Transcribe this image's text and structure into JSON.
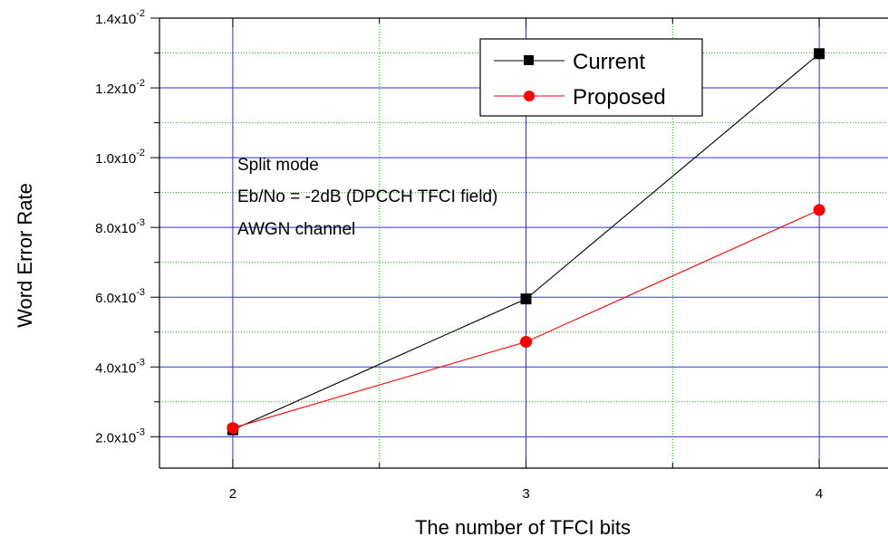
{
  "chart_data": {
    "type": "line",
    "title": "",
    "xlabel": "The number of TFCI bits",
    "ylabel": "Word Error Rate",
    "x": [
      2,
      3,
      4
    ],
    "xlim": [
      1.75,
      4.25
    ],
    "ylim": [
      0.0011,
      0.014
    ],
    "x_ticks": [
      {
        "value": 2,
        "label": "2"
      },
      {
        "value": 3,
        "label": "3"
      },
      {
        "value": 4,
        "label": "4"
      }
    ],
    "y_ticks": [
      {
        "value": 0.002,
        "mantissa": "2.0x10",
        "exponent": "-3"
      },
      {
        "value": 0.004,
        "mantissa": "4.0x10",
        "exponent": "-3"
      },
      {
        "value": 0.006,
        "mantissa": "6.0x10",
        "exponent": "-3"
      },
      {
        "value": 0.008,
        "mantissa": "8.0x10",
        "exponent": "-3"
      },
      {
        "value": 0.01,
        "mantissa": "1.0x10",
        "exponent": "-2"
      },
      {
        "value": 0.012,
        "mantissa": "1.2x10",
        "exponent": "-2"
      },
      {
        "value": 0.014,
        "mantissa": "1.4x10",
        "exponent": "-2"
      }
    ],
    "series": [
      {
        "name": "Current",
        "values": [
          0.0022,
          0.00595,
          0.01298
        ],
        "color": "#000000",
        "marker": "square"
      },
      {
        "name": "Proposed",
        "values": [
          0.00225,
          0.00472,
          0.0085
        ],
        "color": "#ff0000",
        "marker": "circle"
      }
    ],
    "annotations": [
      "Split mode",
      "Eb/No = -2dB (DPCCH TFCI field)",
      "AWGN channel"
    ],
    "grid": true,
    "grid_major_color": "#3333cc",
    "grid_minor_color": "#22aa22",
    "legend_placement": "top-right"
  }
}
